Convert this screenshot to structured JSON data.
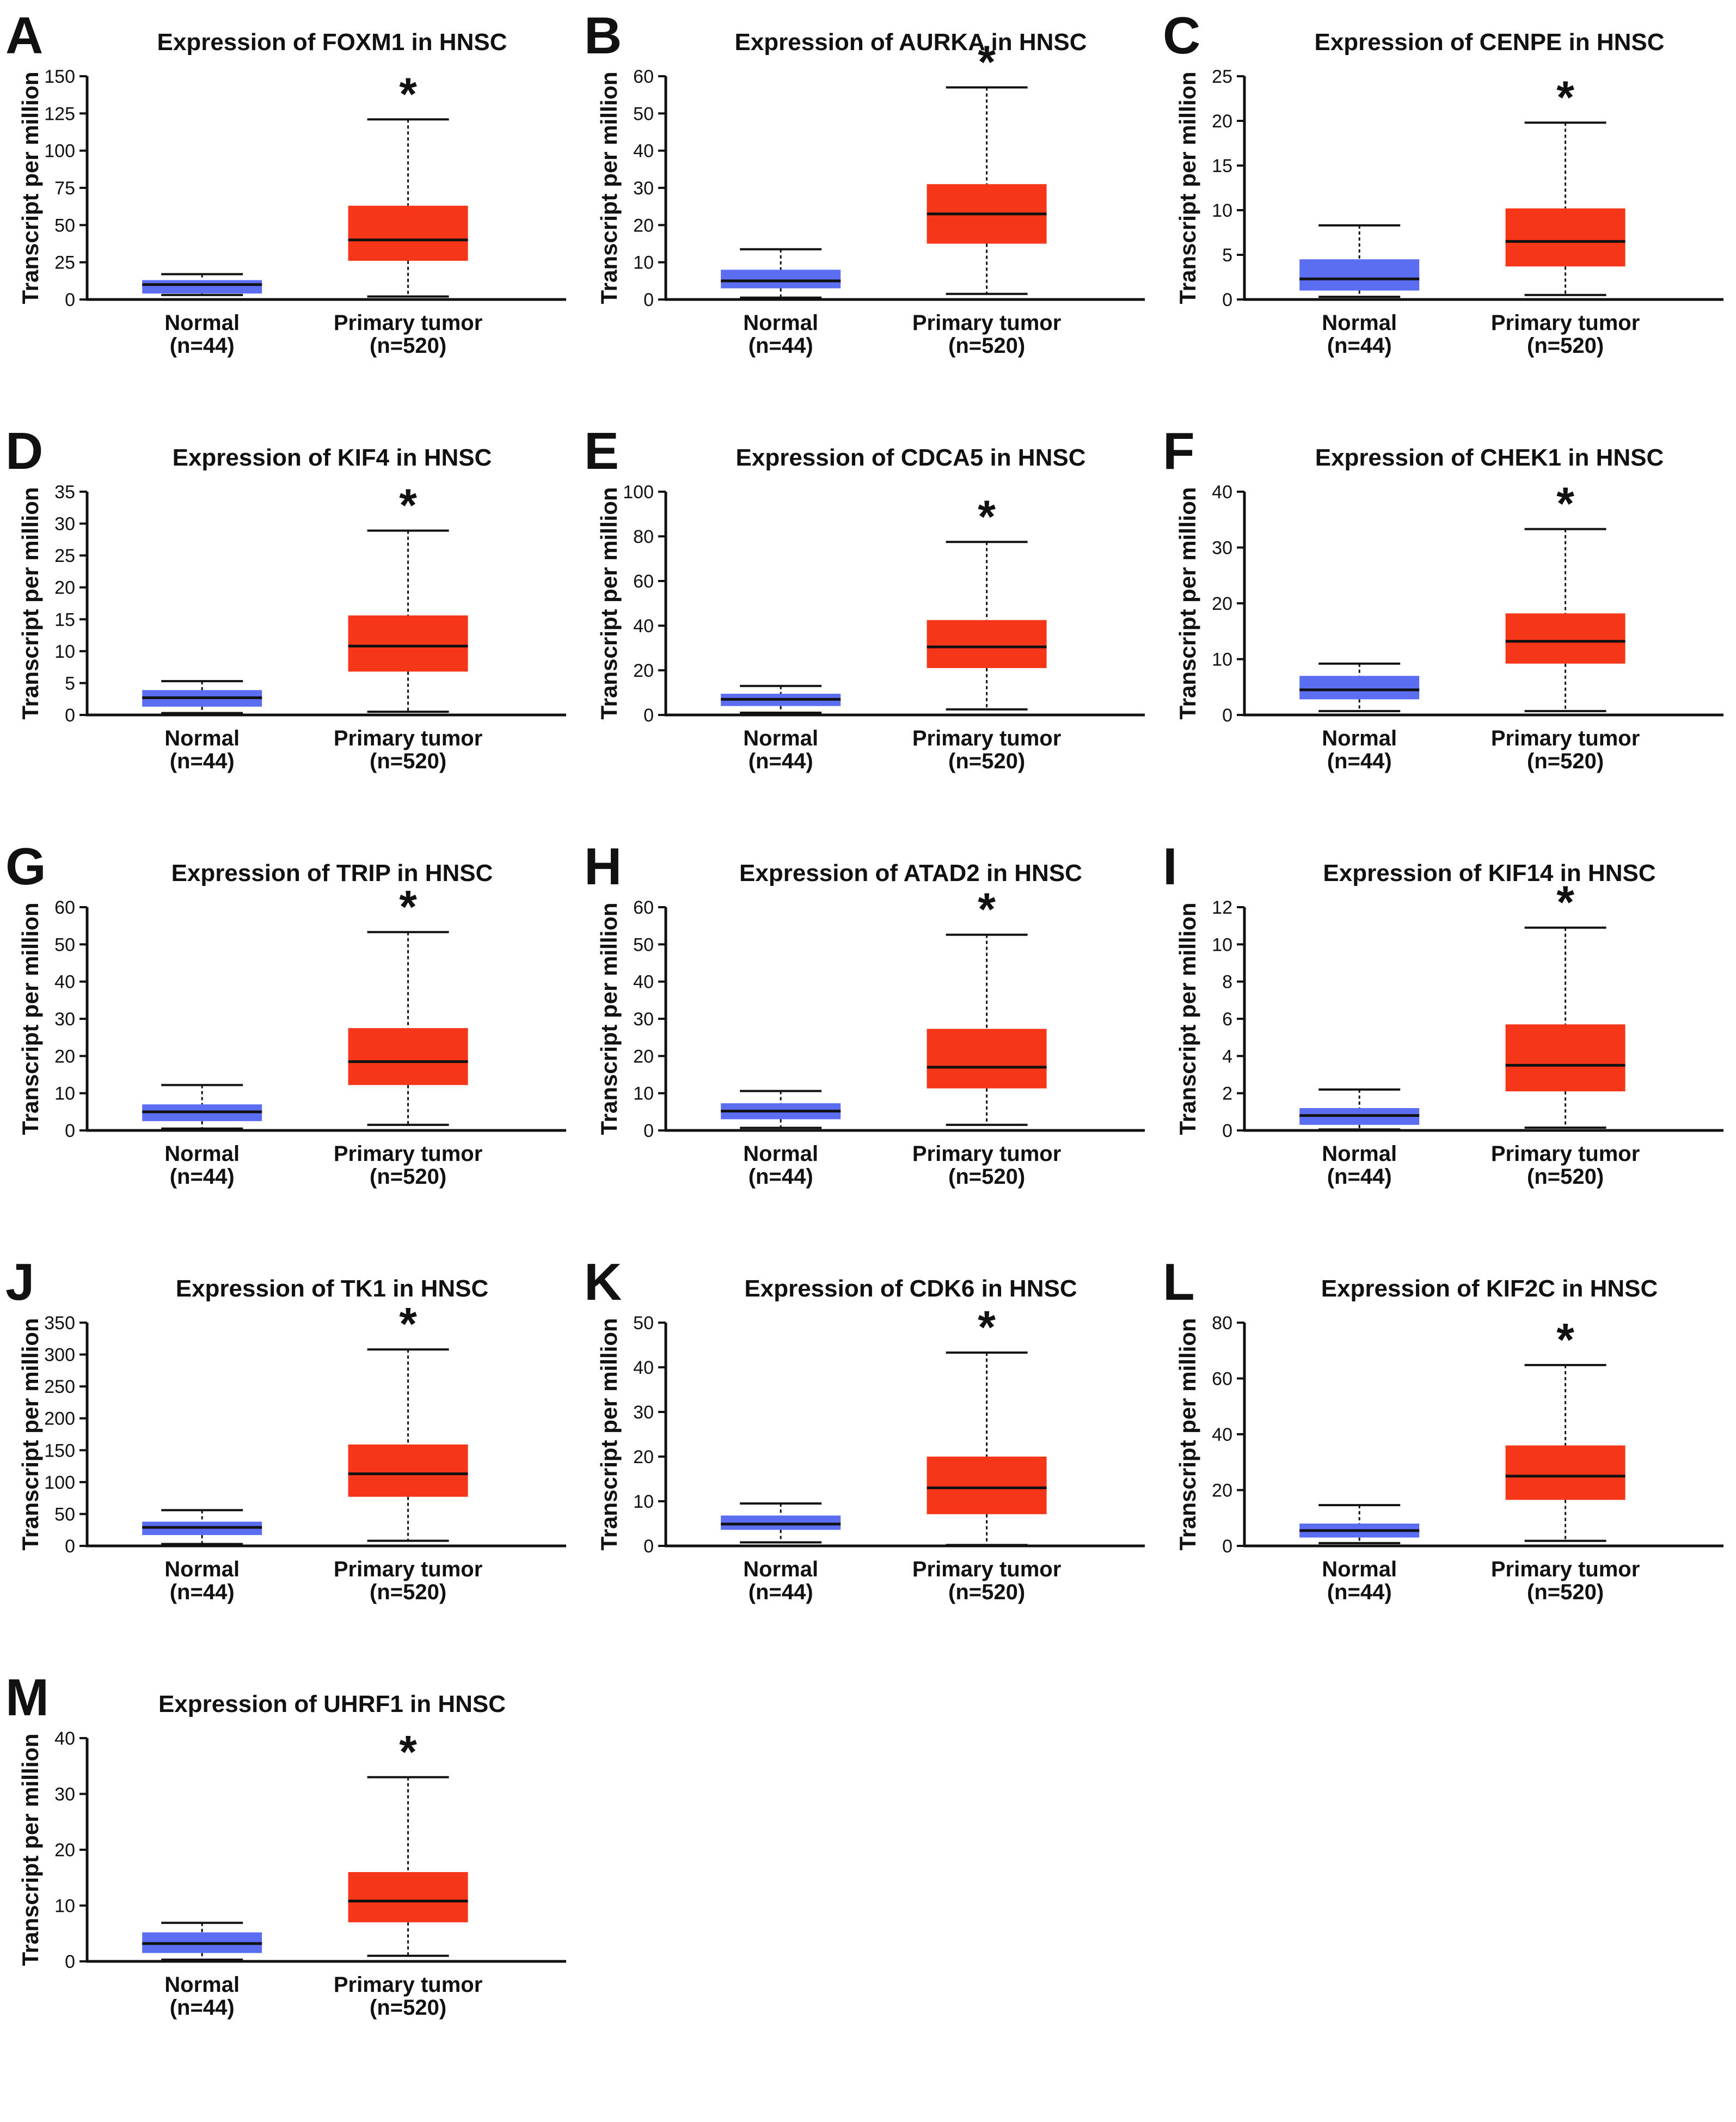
{
  "figure": {
    "colors": {
      "normal": "#5b6ef2",
      "tumor": "#f63618",
      "median": "#111111",
      "axis": "#111111"
    },
    "ylabel": "Transcript per million",
    "groups": [
      {
        "name": "Normal",
        "n": "(n=44)"
      },
      {
        "name": "Primary tumor",
        "n": "(n=520)"
      }
    ],
    "significance": "*"
  },
  "chart_data": [
    {
      "id": "A",
      "type": "box",
      "title": "Expression of FOXM1 in HNSC",
      "ylabel": "Transcript per million",
      "ylim": [
        0,
        150
      ],
      "yticks": [
        0,
        25,
        50,
        75,
        100,
        125,
        150
      ],
      "series": [
        {
          "name": "Normal",
          "n": "(n=44)",
          "min": 3,
          "q1": 4,
          "median": 10,
          "q3": 13,
          "max": 17
        },
        {
          "name": "Primary tumor",
          "n": "(n=520)",
          "min": 2,
          "q1": 26,
          "median": 40,
          "q3": 63,
          "max": 121
        }
      ],
      "significance": "*"
    },
    {
      "id": "B",
      "type": "box",
      "title": "Expression of AURKA in HNSC",
      "ylabel": "Transcript per million",
      "ylim": [
        0,
        60
      ],
      "yticks": [
        0,
        10,
        20,
        30,
        40,
        50,
        60
      ],
      "series": [
        {
          "name": "Normal",
          "n": "(n=44)",
          "min": 0.5,
          "q1": 3,
          "median": 5,
          "q3": 8,
          "max": 13.5
        },
        {
          "name": "Primary tumor",
          "n": "(n=520)",
          "min": 1.5,
          "q1": 15,
          "median": 23,
          "q3": 31,
          "max": 57
        }
      ],
      "significance": "*"
    },
    {
      "id": "C",
      "type": "box",
      "title": "Expression of CENPE in HNSC",
      "ylabel": "Transcript per million",
      "ylim": [
        0,
        25
      ],
      "yticks": [
        0,
        5,
        10,
        15,
        20,
        25
      ],
      "series": [
        {
          "name": "Normal",
          "n": "(n=44)",
          "min": 0.3,
          "q1": 1,
          "median": 2.3,
          "q3": 4.5,
          "max": 8.3
        },
        {
          "name": "Primary tumor",
          "n": "(n=520)",
          "min": 0.5,
          "q1": 3.7,
          "median": 6.5,
          "q3": 10.2,
          "max": 19.8
        }
      ],
      "significance": "*"
    },
    {
      "id": "D",
      "type": "box",
      "title": "Expression of KIF4 in HNSC",
      "ylabel": "Transcript per million",
      "ylim": [
        0,
        35
      ],
      "yticks": [
        0,
        5,
        10,
        15,
        20,
        25,
        30,
        35
      ],
      "series": [
        {
          "name": "Normal",
          "n": "(n=44)",
          "min": 0.3,
          "q1": 1.3,
          "median": 2.7,
          "q3": 3.9,
          "max": 5.3
        },
        {
          "name": "Primary tumor",
          "n": "(n=520)",
          "min": 0.5,
          "q1": 6.8,
          "median": 10.8,
          "q3": 15.6,
          "max": 28.9
        }
      ],
      "significance": "*"
    },
    {
      "id": "E",
      "type": "box",
      "title": "Expression of CDCA5 in HNSC",
      "ylabel": "Transcript per million",
      "ylim": [
        0,
        100
      ],
      "yticks": [
        0,
        20,
        40,
        60,
        80,
        100
      ],
      "series": [
        {
          "name": "Normal",
          "n": "(n=44)",
          "min": 1,
          "q1": 4,
          "median": 7,
          "q3": 9.5,
          "max": 13
        },
        {
          "name": "Primary tumor",
          "n": "(n=520)",
          "min": 2.5,
          "q1": 21,
          "median": 30.5,
          "q3": 42.5,
          "max": 77.5
        }
      ],
      "significance": "*"
    },
    {
      "id": "F",
      "type": "box",
      "title": "Expression of CHEK1 in HNSC",
      "ylabel": "Transcript per million",
      "ylim": [
        0,
        40
      ],
      "yticks": [
        0,
        10,
        20,
        30,
        40
      ],
      "series": [
        {
          "name": "Normal",
          "n": "(n=44)",
          "min": 0.7,
          "q1": 2.8,
          "median": 4.5,
          "q3": 7,
          "max": 9.2
        },
        {
          "name": "Primary tumor",
          "n": "(n=520)",
          "min": 0.7,
          "q1": 9.2,
          "median": 13.2,
          "q3": 18.2,
          "max": 33.3
        }
      ],
      "significance": "*"
    },
    {
      "id": "G",
      "type": "box",
      "title": "Expression of TRIP in HNSC",
      "ylabel": "Transcript per million",
      "ylim": [
        0,
        60
      ],
      "yticks": [
        0,
        10,
        20,
        30,
        40,
        50,
        60
      ],
      "series": [
        {
          "name": "Normal",
          "n": "(n=44)",
          "min": 0.5,
          "q1": 2.5,
          "median": 5,
          "q3": 7,
          "max": 12.2
        },
        {
          "name": "Primary tumor",
          "n": "(n=520)",
          "min": 1.5,
          "q1": 12.2,
          "median": 18.5,
          "q3": 27.5,
          "max": 53.3
        }
      ],
      "significance": "*"
    },
    {
      "id": "H",
      "type": "box",
      "title": "Expression of ATAD2 in HNSC",
      "ylabel": "Transcript per million",
      "ylim": [
        0,
        60
      ],
      "yticks": [
        0,
        10,
        20,
        30,
        40,
        50,
        60
      ],
      "series": [
        {
          "name": "Normal",
          "n": "(n=44)",
          "min": 0.7,
          "q1": 3,
          "median": 5.2,
          "q3": 7.3,
          "max": 10.6
        },
        {
          "name": "Primary tumor",
          "n": "(n=520)",
          "min": 1.5,
          "q1": 11.3,
          "median": 17,
          "q3": 27.3,
          "max": 52.6
        }
      ],
      "significance": "*"
    },
    {
      "id": "I",
      "type": "box",
      "title": "Expression of KIF14 in HNSC",
      "ylabel": "Transcript per million",
      "ylim": [
        0,
        12
      ],
      "yticks": [
        0,
        2,
        4,
        6,
        8,
        10,
        12
      ],
      "series": [
        {
          "name": "Normal",
          "n": "(n=44)",
          "min": 0.05,
          "q1": 0.3,
          "median": 0.8,
          "q3": 1.2,
          "max": 2.2
        },
        {
          "name": "Primary tumor",
          "n": "(n=520)",
          "min": 0.15,
          "q1": 2.1,
          "median": 3.5,
          "q3": 5.7,
          "max": 10.9
        }
      ],
      "significance": "*"
    },
    {
      "id": "J",
      "type": "box",
      "title": "Expression of TK1 in HNSC",
      "ylabel": "Transcript per million",
      "ylim": [
        0,
        350
      ],
      "yticks": [
        0,
        50,
        100,
        150,
        200,
        250,
        300,
        350
      ],
      "series": [
        {
          "name": "Normal",
          "n": "(n=44)",
          "min": 3,
          "q1": 17,
          "median": 29,
          "q3": 38,
          "max": 56
        },
        {
          "name": "Primary tumor",
          "n": "(n=520)",
          "min": 8,
          "q1": 77,
          "median": 113,
          "q3": 159,
          "max": 308
        }
      ],
      "significance": "*"
    },
    {
      "id": "K",
      "type": "box",
      "title": "Expression of CDK6 in HNSC",
      "ylabel": "Transcript per million",
      "ylim": [
        0,
        50
      ],
      "yticks": [
        0,
        10,
        20,
        30,
        40,
        50
      ],
      "series": [
        {
          "name": "Normal",
          "n": "(n=44)",
          "min": 0.8,
          "q1": 3.6,
          "median": 4.9,
          "q3": 6.8,
          "max": 9.5
        },
        {
          "name": "Primary tumor",
          "n": "(n=520)",
          "min": 0.2,
          "q1": 7.1,
          "median": 13,
          "q3": 20,
          "max": 43.3
        }
      ],
      "significance": "*"
    },
    {
      "id": "L",
      "type": "box",
      "title": "Expression of KIF2C in HNSC",
      "ylabel": "Transcript per million",
      "ylim": [
        0,
        80
      ],
      "yticks": [
        0,
        20,
        40,
        60,
        80
      ],
      "series": [
        {
          "name": "Normal",
          "n": "(n=44)",
          "min": 1,
          "q1": 3,
          "median": 5.5,
          "q3": 8,
          "max": 14.6
        },
        {
          "name": "Primary tumor",
          "n": "(n=520)",
          "min": 1.8,
          "q1": 16.5,
          "median": 25,
          "q3": 36,
          "max": 64.8
        }
      ],
      "significance": "*"
    },
    {
      "id": "M",
      "type": "box",
      "title": "Expression of UHRF1 in HNSC",
      "ylabel": "Transcript per million",
      "ylim": [
        0,
        40
      ],
      "yticks": [
        0,
        10,
        20,
        30,
        40
      ],
      "series": [
        {
          "name": "Normal",
          "n": "(n=44)",
          "min": 0.3,
          "q1": 1.5,
          "median": 3.2,
          "q3": 5.2,
          "max": 6.9
        },
        {
          "name": "Primary tumor",
          "n": "(n=520)",
          "min": 1,
          "q1": 7,
          "median": 10.8,
          "q3": 16,
          "max": 33
        }
      ],
      "significance": "*"
    }
  ]
}
